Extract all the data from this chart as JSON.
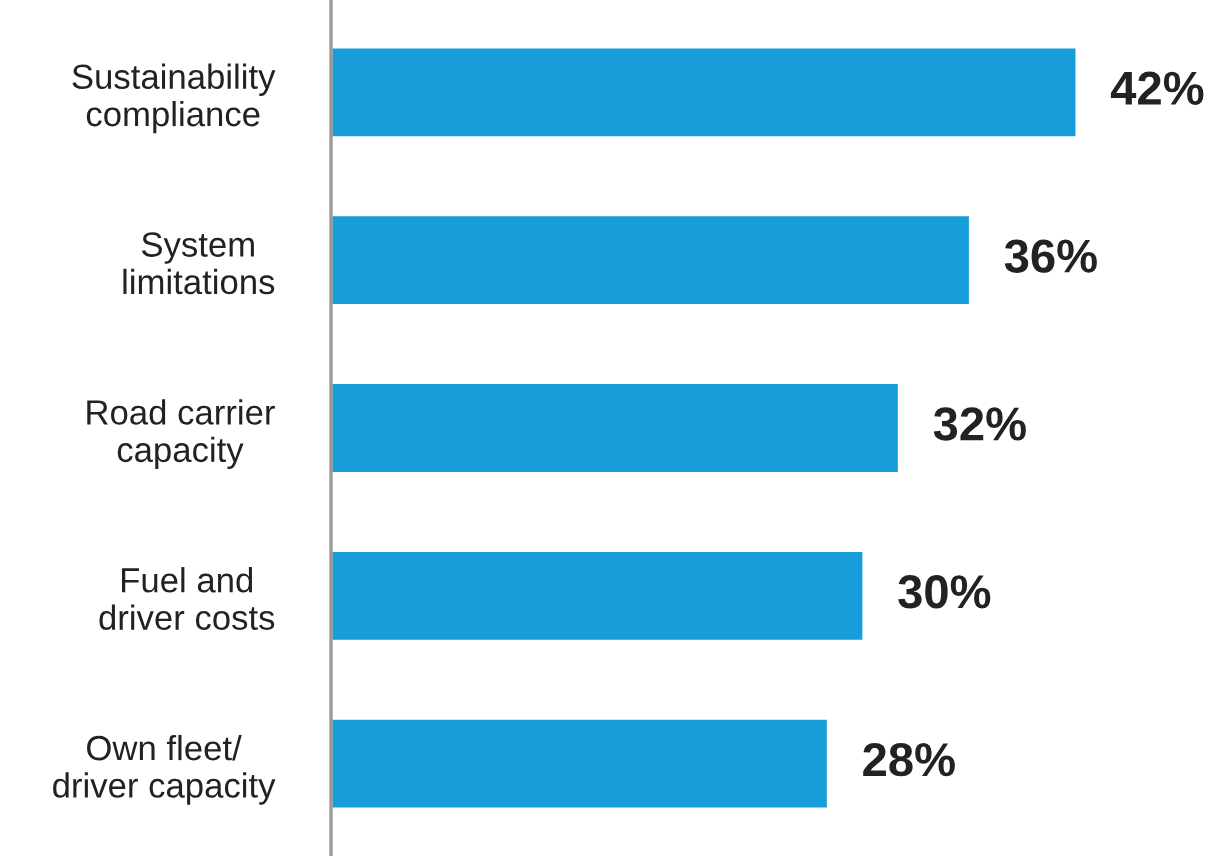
{
  "chart_data": {
    "type": "bar",
    "orientation": "horizontal",
    "categories": [
      "Sustainability\ncompliance",
      "System\nlimitations",
      "Road carrier\ncapacity",
      "Fuel and\ndriver costs",
      "Own fleet/\ndriver capacity"
    ],
    "values": [
      42,
      36,
      32,
      30,
      28
    ],
    "value_labels": [
      "42%",
      "36%",
      "32%",
      "30%",
      "28%"
    ],
    "color": "#179dd9",
    "grid": false,
    "legend": false
  }
}
